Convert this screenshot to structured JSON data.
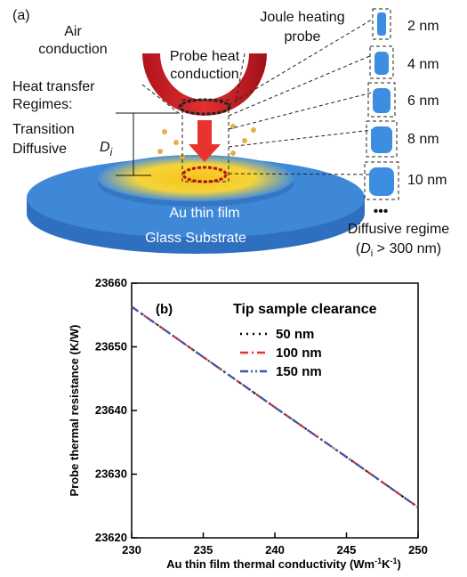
{
  "diagram": {
    "panel_label": "(a)",
    "air_conduction": [
      "Air",
      "conduction"
    ],
    "joule_heating": [
      "Joule heating",
      "probe"
    ],
    "probe_heat": [
      "Probe heat",
      "conduction"
    ],
    "regimes": [
      "Heat transfer",
      "Regimes:"
    ],
    "transition": "Transition",
    "diffusive": "Diffusive",
    "gap_symbol": [
      "D",
      "i"
    ],
    "film": "Au thin film",
    "substrate": "Glass Substrate",
    "sizes": [
      "2 nm",
      "4 nm",
      "6 nm",
      "8 nm",
      "10 nm"
    ],
    "ellipsis": "•••",
    "regime_caption": "Diffusive regime",
    "regime_condition": [
      "(",
      "D",
      "i",
      " > 300 nm)"
    ]
  },
  "chart_data": {
    "type": "line",
    "panel_label": "(b)",
    "x_label": [
      "Au thin film thermal conductivity (Wm",
      "-1",
      "K",
      "-1",
      ")"
    ],
    "y_label": "Probe thermal resistance (K/W)",
    "legend_title": "Tip sample clearance",
    "x": [
      230,
      235,
      240,
      245,
      250
    ],
    "series": [
      {
        "name": "50 nm",
        "color": "#000000",
        "dash": "2 5",
        "values": [
          23656.3,
          23648.4,
          23640.5,
          23632.7,
          23624.8
        ]
      },
      {
        "name": "100 nm",
        "color": "#e8302a",
        "dash": "9 4 2 4",
        "values": [
          23656.3,
          23648.4,
          23640.5,
          23632.7,
          23624.8
        ]
      },
      {
        "name": "150 nm",
        "color": "#3a56b0",
        "dash": "9 3 2 3 2 3",
        "values": [
          23656.3,
          23648.4,
          23640.5,
          23632.7,
          23624.8
        ]
      }
    ],
    "xlim": [
      230,
      250
    ],
    "xticks": [
      230,
      235,
      240,
      245,
      250
    ],
    "ylim": [
      23620,
      23660
    ],
    "yticks": [
      23620,
      23630,
      23640,
      23650,
      23660
    ],
    "legend": "upper right"
  }
}
